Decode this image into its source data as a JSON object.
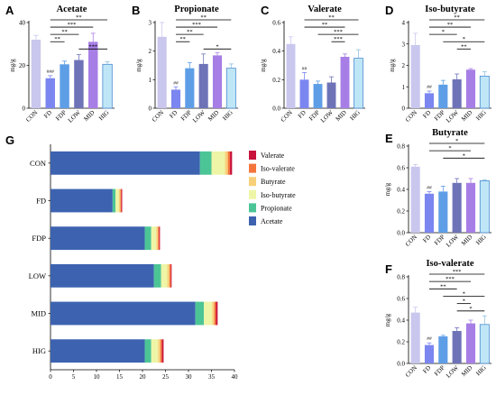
{
  "colors": {
    "CON": "#c9c7ee",
    "FD": "#7b86f0",
    "FDP": "#5e9ee6",
    "LOW": "#6e73b8",
    "MID": "#a77ee6",
    "HIG": "#bfe6f7",
    "Valerate": "#c8123c",
    "Iso-valerate": "#f4743b",
    "Butyrate": "#f8d07a",
    "Iso-butyrate": "#eef5a6",
    "Propionate": "#4cc596",
    "Acetate": "#3d63b0"
  },
  "chart_data": [
    {
      "panel": "A",
      "type": "bar",
      "title": "Acetate",
      "ylabel": "mg/g",
      "categories": [
        "CON",
        "FD",
        "FDP",
        "LOW",
        "MID",
        "HIG"
      ],
      "values": [
        32,
        14,
        20.5,
        22.5,
        31,
        20.5
      ],
      "errors": [
        2,
        1.2,
        1.5,
        2.5,
        4,
        1.2
      ],
      "ylim": [
        0,
        40
      ],
      "yticks": [
        0,
        20,
        40
      ],
      "hash_label": "###",
      "sig": [
        {
          "from": "FD",
          "to": "HIG",
          "label": "**"
        },
        {
          "from": "FD",
          "to": "MID",
          "label": "***"
        },
        {
          "from": "FD",
          "to": "LOW",
          "label": "**"
        },
        {
          "from": "FD",
          "to": "FDP",
          "label": "**"
        },
        {
          "from": "LOW",
          "to": "HIG",
          "label": "***"
        }
      ]
    },
    {
      "panel": "B",
      "type": "bar",
      "title": "Propionate",
      "ylabel": "mg/g",
      "categories": [
        "CON",
        "FD",
        "FDP",
        "LOW",
        "MID",
        "HIG"
      ],
      "values": [
        2.5,
        0.65,
        1.4,
        1.55,
        1.85,
        1.4
      ],
      "errors": [
        0.5,
        0.1,
        0.2,
        0.35,
        0.1,
        0.15
      ],
      "ylim": [
        0,
        3
      ],
      "yticks": [
        0,
        1,
        2,
        3
      ],
      "hash_label": "##",
      "sig": [
        {
          "from": "FD",
          "to": "HIG",
          "label": "**"
        },
        {
          "from": "FD",
          "to": "MID",
          "label": "***"
        },
        {
          "from": "FD",
          "to": "LOW",
          "label": "**"
        },
        {
          "from": "FD",
          "to": "FDP",
          "label": "**"
        },
        {
          "from": "LOW",
          "to": "HIG",
          "label": "*"
        }
      ]
    },
    {
      "panel": "C",
      "type": "bar",
      "title": "Valerate",
      "ylabel": "mg/g",
      "categories": [
        "CON",
        "FD",
        "FDP",
        "LOW",
        "MID",
        "HIG"
      ],
      "values": [
        0.45,
        0.2,
        0.17,
        0.18,
        0.36,
        0.35
      ],
      "errors": [
        0.05,
        0.05,
        0.02,
        0.04,
        0.02,
        0.06
      ],
      "ylim": [
        0,
        0.6
      ],
      "yticks": [
        0.0,
        0.2,
        0.4,
        0.6
      ],
      "hash_label": "##",
      "sig": [
        {
          "from": "FD",
          "to": "HIG",
          "label": "**"
        },
        {
          "from": "FD",
          "to": "MID",
          "label": "**"
        },
        {
          "from": "FDP",
          "to": "HIG",
          "label": "***"
        },
        {
          "from": "LOW",
          "to": "MID",
          "label": "***"
        }
      ]
    },
    {
      "panel": "D",
      "type": "bar",
      "title": "Iso-butyrate",
      "ylabel": "mg/g",
      "categories": [
        "CON",
        "FD",
        "FDP",
        "LOW",
        "MID",
        "HIG"
      ],
      "values": [
        2.95,
        0.7,
        1.1,
        1.35,
        1.8,
        1.5
      ],
      "errors": [
        0.55,
        0.1,
        0.2,
        0.25,
        0.05,
        0.2
      ],
      "ylim": [
        0,
        4
      ],
      "yticks": [
        0,
        1,
        2,
        3,
        4
      ],
      "hash_label": "##",
      "sig": [
        {
          "from": "FD",
          "to": "HIG",
          "label": "**"
        },
        {
          "from": "FD",
          "to": "MID",
          "label": "**"
        },
        {
          "from": "FD",
          "to": "LOW",
          "label": "*"
        },
        {
          "from": "FDP",
          "to": "HIG",
          "label": "*"
        },
        {
          "from": "LOW",
          "to": "MID",
          "label": "**"
        }
      ]
    },
    {
      "panel": "E",
      "type": "bar",
      "title": "Butyrate",
      "ylabel": "mg/g",
      "categories": [
        "CON",
        "FD",
        "FDP",
        "LOW",
        "MID",
        "HIG"
      ],
      "values": [
        0.61,
        0.36,
        0.38,
        0.46,
        0.46,
        0.48
      ],
      "errors": [
        0.02,
        0.02,
        0.05,
        0.04,
        0.04,
        0.01
      ],
      "ylim": [
        0,
        0.8
      ],
      "yticks": [
        0.0,
        0.2,
        0.4,
        0.6,
        0.8
      ],
      "hash_label": "##",
      "sig": [
        {
          "from": "FD",
          "to": "HIG",
          "label": "*"
        },
        {
          "from": "FD",
          "to": "MID",
          "label": "*"
        },
        {
          "from": "FDP",
          "to": "HIG",
          "label": "*"
        }
      ]
    },
    {
      "panel": "F",
      "type": "bar",
      "title": "Iso-valerate",
      "ylabel": "mg/g",
      "categories": [
        "CON",
        "FD",
        "FDP",
        "LOW",
        "MID",
        "HIG"
      ],
      "values": [
        0.47,
        0.17,
        0.25,
        0.3,
        0.37,
        0.36
      ],
      "errors": [
        0.05,
        0.02,
        0.01,
        0.03,
        0.03,
        0.08
      ],
      "ylim": [
        0,
        0.8
      ],
      "yticks": [
        0.0,
        0.2,
        0.4,
        0.6,
        0.8
      ],
      "hash_label": "##",
      "sig": [
        {
          "from": "FD",
          "to": "HIG",
          "label": "***"
        },
        {
          "from": "FD",
          "to": "MID",
          "label": "***"
        },
        {
          "from": "FD",
          "to": "LOW",
          "label": "**"
        },
        {
          "from": "FDP",
          "to": "HIG",
          "label": "*"
        },
        {
          "from": "LOW",
          "to": "MID",
          "label": "*"
        },
        {
          "from": "LOW",
          "to": "HIG",
          "label": "*"
        }
      ]
    },
    {
      "panel": "G",
      "type": "stacked-bar-horizontal",
      "categories": [
        "CON",
        "FD",
        "FDP",
        "LOW",
        "MID",
        "HIG"
      ],
      "xlim": [
        0,
        40
      ],
      "xticks": [
        0,
        5,
        10,
        15,
        20,
        25,
        30,
        35,
        40
      ],
      "series": [
        {
          "name": "Acetate",
          "values": [
            32.5,
            13.5,
            20.5,
            22.5,
            31.5,
            20.5
          ]
        },
        {
          "name": "Propionate",
          "values": [
            2.5,
            0.65,
            1.4,
            1.55,
            1.85,
            1.4
          ]
        },
        {
          "name": "Iso-butyrate",
          "values": [
            2.95,
            0.7,
            1.1,
            1.35,
            1.8,
            1.5
          ]
        },
        {
          "name": "Butyrate",
          "values": [
            0.61,
            0.36,
            0.38,
            0.46,
            0.46,
            0.48
          ]
        },
        {
          "name": "Iso-valerate",
          "values": [
            0.47,
            0.17,
            0.25,
            0.3,
            0.37,
            0.36
          ]
        },
        {
          "name": "Valerate",
          "values": [
            0.45,
            0.2,
            0.17,
            0.18,
            0.36,
            0.35
          ]
        }
      ],
      "legend_order": [
        "Valerate",
        "Iso-valerate",
        "Butyrate",
        "Iso-butyrate",
        "Propionate",
        "Acetate"
      ],
      "legend": "top-right"
    }
  ]
}
